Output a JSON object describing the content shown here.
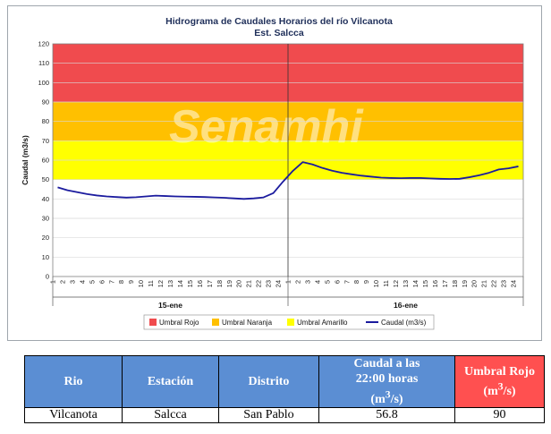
{
  "chart_data": {
    "type": "line",
    "title": "Hidrograma de Caudales Horarios del río Vilcanota",
    "subtitle": "Est. Salcca",
    "ylabel": "Caudal (m3/s)",
    "ylim": [
      0,
      120
    ],
    "yticks": [
      0,
      10,
      20,
      30,
      40,
      50,
      60,
      70,
      80,
      90,
      100,
      110,
      120
    ],
    "days": [
      "15-ene",
      "16-ene"
    ],
    "hours": [
      "1",
      "2",
      "3",
      "4",
      "5",
      "6",
      "7",
      "8",
      "9",
      "10",
      "11",
      "12",
      "13",
      "14",
      "15",
      "16",
      "17",
      "18",
      "19",
      "20",
      "21",
      "22",
      "23",
      "24"
    ],
    "thresholds": [
      {
        "name": "Umbral Rojo",
        "from": 90,
        "to": 120,
        "color": "#f04b4e"
      },
      {
        "name": "Umbral Naranja",
        "from": 70,
        "to": 90,
        "color": "#ffc000"
      },
      {
        "name": "Umbral Amarillo",
        "from": 50,
        "to": 70,
        "color": "#ffff00"
      }
    ],
    "series": [
      {
        "name": "Caudal (m3/s)",
        "color": "#1b1b9e",
        "values": [
          46,
          44.5,
          43.5,
          42.5,
          41.8,
          41.3,
          41,
          40.7,
          40.9,
          41.3,
          41.7,
          41.5,
          41.3,
          41.2,
          41.1,
          41,
          40.8,
          40.6,
          40.3,
          40,
          40.3,
          40.8,
          43,
          49,
          54.5,
          59,
          57.8,
          56,
          54.6,
          53.5,
          52.7,
          52,
          51.5,
          51,
          50.8,
          50.7,
          50.8,
          50.8,
          50.6,
          50.4,
          50.3,
          50.4,
          51.2,
          52.2,
          53.5,
          55.2,
          55.8,
          56.8
        ]
      }
    ],
    "watermark": "Senamhi",
    "grid": true,
    "legend_position": "bottom"
  },
  "table": {
    "headers": [
      "Rio",
      "Estación",
      "Distrito",
      "Caudal a las 22:00 horas (m3/s)",
      "Umbral Rojo (m3/s)"
    ],
    "row": [
      "Vilcanota",
      "Salcca",
      "San Pablo",
      "56.8",
      "90"
    ]
  }
}
